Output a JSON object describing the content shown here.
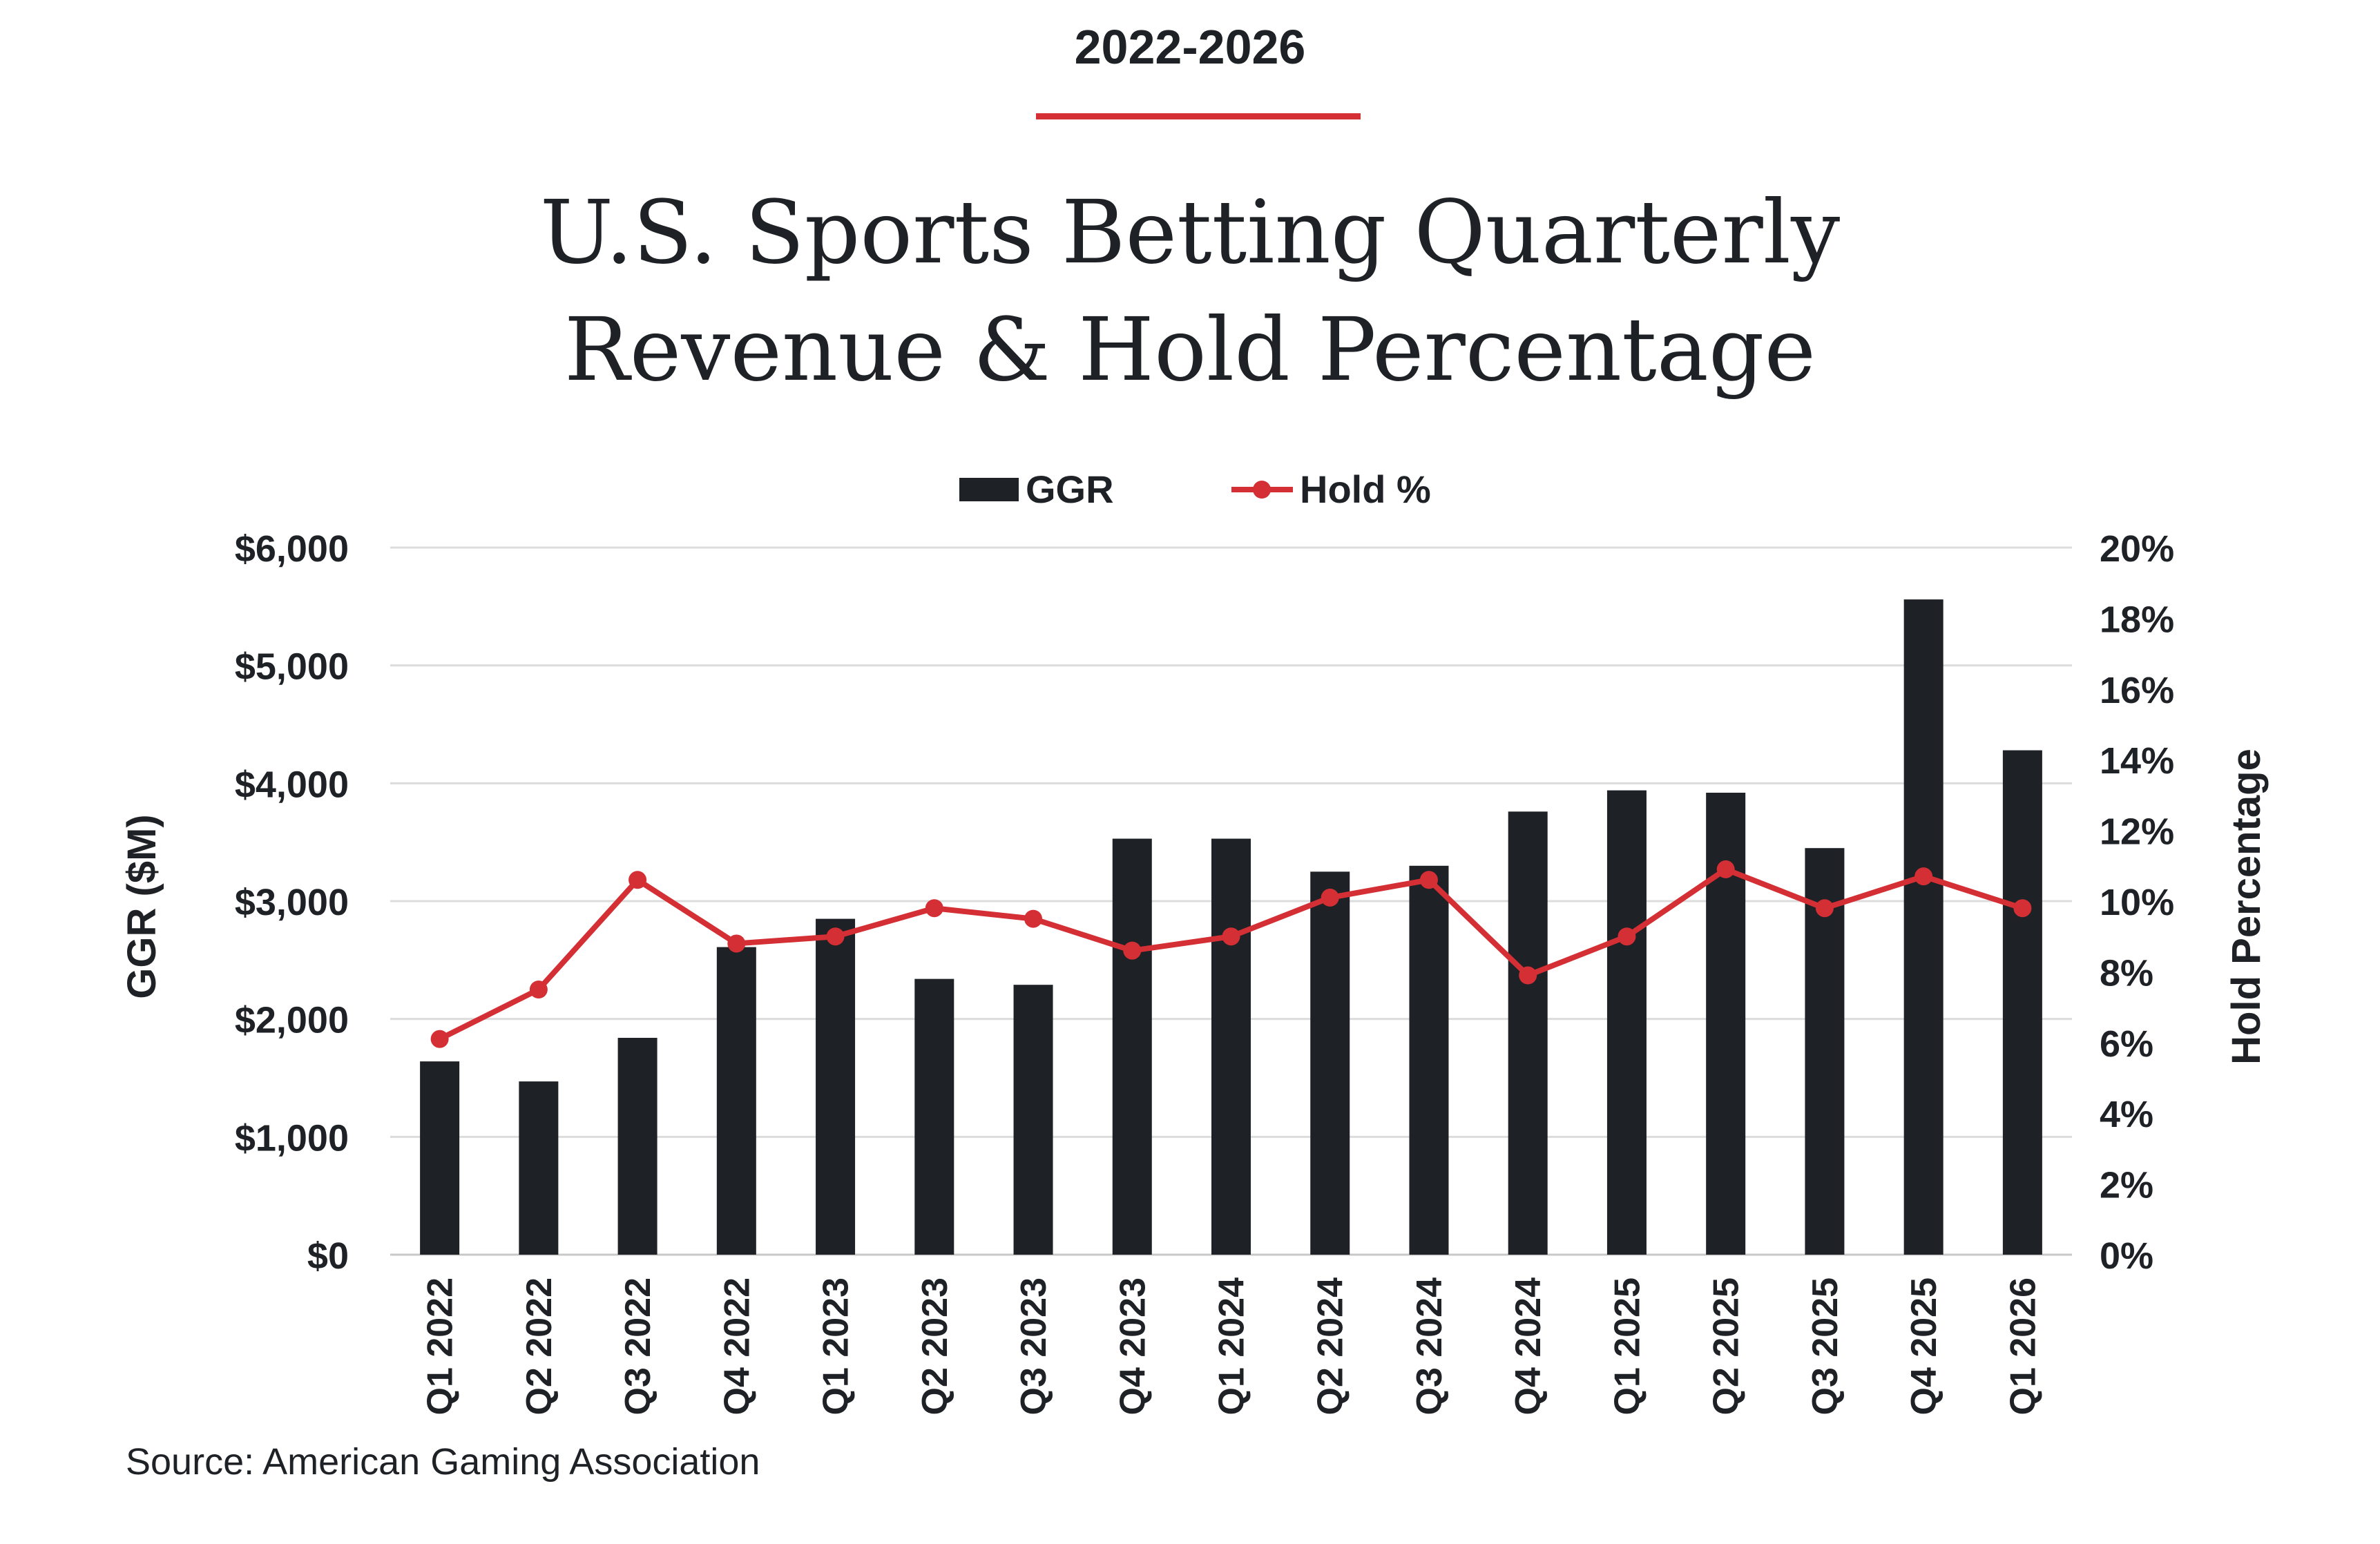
{
  "header": {
    "period": "2022-2026",
    "title_line1": "U.S. Sports Betting Quarterly",
    "title_line2": "Revenue & Hold Percentage"
  },
  "source": "Source: American Gaming Association",
  "colors": {
    "bar": "#1e2125",
    "line": "#d42f34",
    "grid": "#dcdcdc",
    "text": "#1e2125"
  },
  "chart_data": {
    "type": "bar",
    "categories": [
      "Q1 2022",
      "Q2 2022",
      "Q3 2022",
      "Q4 2022",
      "Q1 2023",
      "Q2 2023",
      "Q3 2023",
      "Q4 2023",
      "Q1 2024",
      "Q2 2024",
      "Q3 2024",
      "Q4 2024",
      "Q1 2025",
      "Q2 2025",
      "Q3 2025",
      "Q4 2025",
      "Q1 2026"
    ],
    "series": [
      {
        "name": "GGR",
        "type": "bar",
        "axis": "left",
        "values": [
          1640,
          1470,
          1840,
          2610,
          2850,
          2340,
          2290,
          3530,
          3530,
          3250,
          3300,
          3760,
          3940,
          3920,
          3450,
          5560,
          4280
        ]
      },
      {
        "name": "Hold %",
        "type": "line",
        "axis": "right",
        "values": [
          6.1,
          7.5,
          10.6,
          8.8,
          9.0,
          9.8,
          9.5,
          8.6,
          9.0,
          10.1,
          10.6,
          7.9,
          9.0,
          10.9,
          9.8,
          10.7,
          9.8
        ]
      }
    ],
    "ylabel": "GGR ($M)",
    "y2label": "Hold Percentage",
    "ylim": [
      0,
      6000
    ],
    "y2lim": [
      0,
      20
    ],
    "yticks": [
      "$0",
      "$1,000",
      "$2,000",
      "$3,000",
      "$4,000",
      "$5,000",
      "$6,000"
    ],
    "y2ticks": [
      "0%",
      "2%",
      "4%",
      "6%",
      "8%",
      "10%",
      "12%",
      "14%",
      "16%",
      "18%",
      "20%"
    ],
    "legend": [
      {
        "label": "GGR",
        "kind": "bar"
      },
      {
        "label": "Hold %",
        "kind": "line"
      }
    ],
    "legend_position": "top-center",
    "grid": true
  }
}
